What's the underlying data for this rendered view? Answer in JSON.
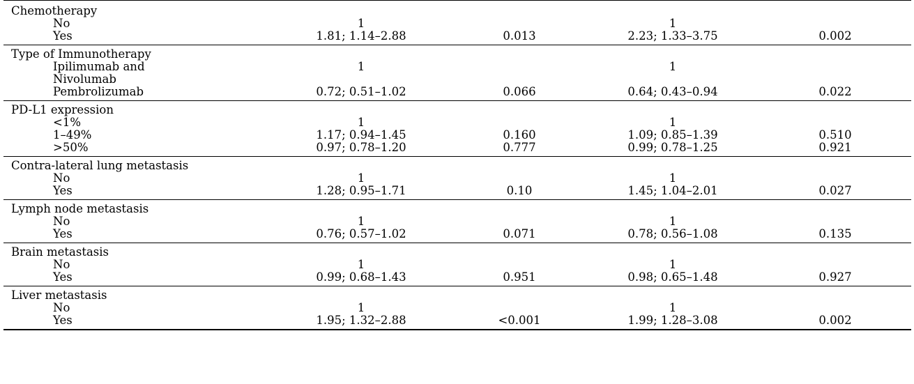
{
  "table": {
    "groups": [
      {
        "title": "Chemotherapy",
        "rows": [
          {
            "label": "No",
            "hr1": "1",
            "p1": "",
            "hr2": "1",
            "p2": ""
          },
          {
            "label": "Yes",
            "hr1": "1.81; 1.14–2.88",
            "p1": "0.013",
            "hr2": "2.23; 1.33–3.75",
            "p2": "0.002"
          }
        ]
      },
      {
        "title": "Type of Immunotherapy",
        "rows": [
          {
            "label": "Ipilimumab and",
            "hr1": "1",
            "p1": "",
            "hr2": "1",
            "p2": ""
          },
          {
            "label": "Nivolumab",
            "hr1": "",
            "p1": "",
            "hr2": "",
            "p2": ""
          },
          {
            "label": "Pembrolizumab",
            "hr1": "0.72; 0.51–1.02",
            "p1": "0.066",
            "hr2": "0.64; 0.43–0.94",
            "p2": "0.022"
          }
        ]
      },
      {
        "title": "PD-L1 expression",
        "rows": [
          {
            "label": "<1%",
            "hr1": "1",
            "p1": "",
            "hr2": "1",
            "p2": ""
          },
          {
            "label": "1–49%",
            "hr1": "1.17; 0.94–1.45",
            "p1": "0.160",
            "hr2": "1.09; 0.85–1.39",
            "p2": "0.510"
          },
          {
            "label": ">50%",
            "hr1": "0.97; 0.78–1.20",
            "p1": "0.777",
            "hr2": "0.99; 0.78–1.25",
            "p2": "0.921"
          }
        ]
      },
      {
        "title": "Contra-lateral lung metastasis",
        "rows": [
          {
            "label": "No",
            "hr1": "1",
            "p1": "",
            "hr2": "1",
            "p2": ""
          },
          {
            "label": "Yes",
            "hr1": "1.28; 0.95–1.71",
            "p1": "0.10",
            "hr2": "1.45; 1.04–2.01",
            "p2": "0.027"
          }
        ]
      },
      {
        "title": "Lymph node metastasis",
        "rows": [
          {
            "label": "No",
            "hr1": "1",
            "p1": "",
            "hr2": "1",
            "p2": ""
          },
          {
            "label": "Yes",
            "hr1": "0.76; 0.57–1.02",
            "p1": "0.071",
            "hr2": "0.78; 0.56–1.08",
            "p2": "0.135"
          }
        ]
      },
      {
        "title": "Brain metastasis",
        "rows": [
          {
            "label": "No",
            "hr1": "1",
            "p1": "",
            "hr2": "1",
            "p2": ""
          },
          {
            "label": "Yes",
            "hr1": "0.99; 0.68–1.43",
            "p1": "0.951",
            "hr2": "0.98; 0.65–1.48",
            "p2": "0.927"
          }
        ]
      },
      {
        "title": "Liver metastasis",
        "rows": [
          {
            "label": "No",
            "hr1": "1",
            "p1": "",
            "hr2": "1",
            "p2": ""
          },
          {
            "label": "Yes",
            "hr1": "1.95; 1.32–2.88",
            "p1": "<0.001",
            "hr2": "1.99; 1.28–3.08",
            "p2": "0.002"
          }
        ]
      }
    ]
  }
}
